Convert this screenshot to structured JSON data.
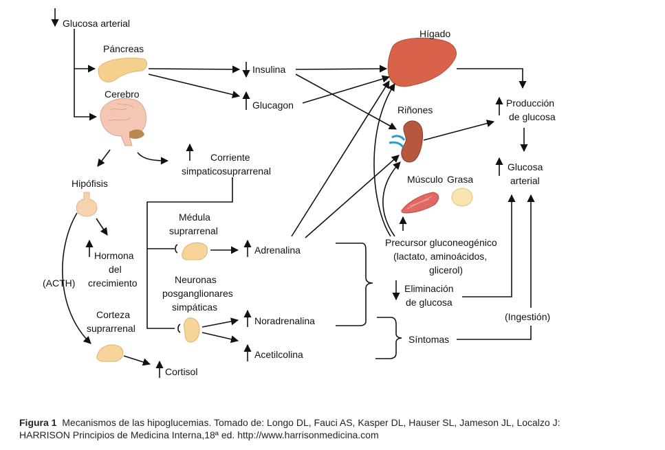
{
  "labels": {
    "glucosa_arterial_top": "Glucosa arterial",
    "pancreas": "Páncreas",
    "cerebro": "Cerebro",
    "insulina": "Insulina",
    "glucagon": "Glucagon",
    "higado": "Hígado",
    "rinones": "Riñones",
    "produccion_l1": "Producción",
    "produccion_l2": "de glucosa",
    "glucosa_arterial_r1": "Glucosa",
    "glucosa_arterial_r2": "arterial",
    "corriente_l1": "Corriente",
    "corriente_l2": "simpaticosuprarrenal",
    "hipofisis": "Hipófisis",
    "musculo": "Músculo",
    "grasa": "Grasa",
    "medula_l1": "Médula",
    "medula_l2": "suprarrenal",
    "adrenalina": "Adrenalina",
    "precursor_l1": "Precursor gluconeogénico",
    "precursor_l2": "(lactato, aminoácidos,",
    "precursor_l3": "glicerol)",
    "hormona_l1": "Hormona",
    "hormona_l2": "del",
    "hormona_l3": "crecimiento",
    "acth": "(ACTH)",
    "neuronas_l1": "Neuronas",
    "neuronas_l2": "posganglionares",
    "neuronas_l3": "simpáticas",
    "eliminacion_l1": "Eliminación",
    "eliminacion_l2": "de glucosa",
    "corteza_l1": "Corteza",
    "corteza_l2": "suprarrenal",
    "noradrenalina": "Noradrenalina",
    "ingestion": "(Ingestión)",
    "sintomas": "Síntomas",
    "acetilcolina": "Acetilcolina",
    "cortisol": "Cortisol"
  },
  "caption": {
    "label": "Figura 1",
    "line1": "Mecanismos de las hipoglucemias. Tomado de: Longo DL, Fauci AS, Kasper DL, Hauser SL, Jameson JL, Localzo J:",
    "line2": "HARRISON Principios de Medicina Interna,18ª ed. http://www.harrisonmedicina.com"
  },
  "colors": {
    "liver": "#d9634a",
    "kidney": "#b5583e",
    "pancreas": "#f5cf8c",
    "brain": "#f4c7b4",
    "gland": "#f7d49a",
    "muscle": "#e06a63",
    "ink": "#111111"
  }
}
